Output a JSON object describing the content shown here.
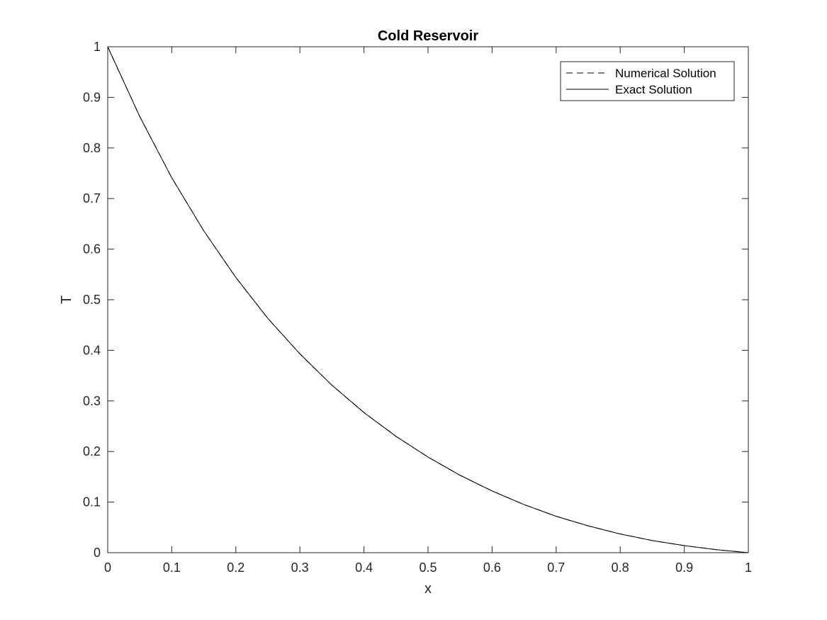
{
  "chart_data": {
    "type": "line",
    "title": "Cold Reservoir",
    "xlabel": "x",
    "ylabel": "T",
    "xlim": [
      0,
      1
    ],
    "ylim": [
      0,
      1
    ],
    "xticks": [
      "0",
      "0.1",
      "0.2",
      "0.3",
      "0.4",
      "0.5",
      "0.6",
      "0.7",
      "0.8",
      "0.9",
      "1"
    ],
    "yticks": [
      "0",
      "0.1",
      "0.2",
      "0.3",
      "0.4",
      "0.5",
      "0.6",
      "0.7",
      "0.8",
      "0.9",
      "1"
    ],
    "grid": false,
    "legend_position": "top-right",
    "x": [
      0,
      0.05,
      0.1,
      0.15,
      0.2,
      0.25,
      0.3,
      0.35,
      0.4,
      0.45,
      0.5,
      0.55,
      0.6,
      0.65,
      0.7,
      0.75,
      0.8,
      0.85,
      0.9,
      0.95,
      1
    ],
    "series": [
      {
        "name": "Numerical Solution",
        "style": "dashed",
        "color": "#000000",
        "values": [
          1.0,
          0.862,
          0.741,
          0.636,
          0.544,
          0.463,
          0.393,
          0.331,
          0.277,
          0.23,
          0.189,
          0.153,
          0.122,
          0.095,
          0.072,
          0.053,
          0.037,
          0.024,
          0.014,
          0.006,
          0.0
        ]
      },
      {
        "name": "Exact Solution",
        "style": "solid",
        "color": "#000000",
        "values": [
          1.0,
          0.862,
          0.741,
          0.636,
          0.544,
          0.463,
          0.393,
          0.331,
          0.277,
          0.23,
          0.189,
          0.153,
          0.122,
          0.095,
          0.072,
          0.053,
          0.037,
          0.024,
          0.014,
          0.006,
          0.0
        ]
      }
    ]
  }
}
